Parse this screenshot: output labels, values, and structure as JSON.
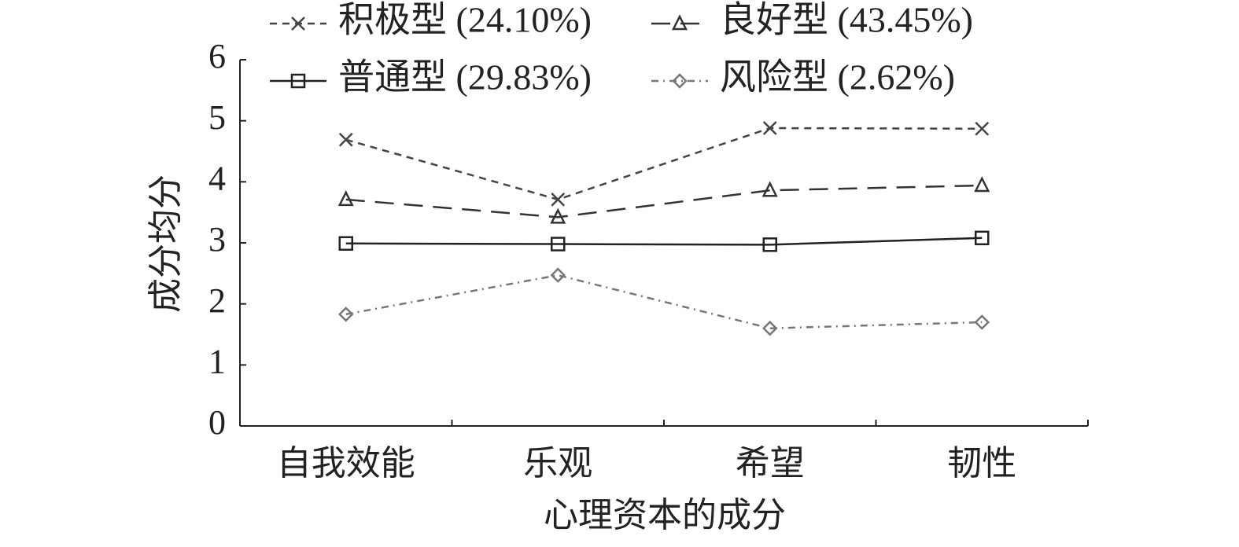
{
  "chart_data": {
    "type": "line",
    "x_label": "心理资本的成分",
    "y_label": "成分均分",
    "categories": [
      "自我效能",
      "乐观",
      "希望",
      "韧性"
    ],
    "series": [
      {
        "name": "积极型 (24.10%)",
        "color": "#444444",
        "marker": "x",
        "linestyle": "dashed",
        "values": [
          4.69,
          3.71,
          4.88,
          4.87
        ]
      },
      {
        "name": "良好型 (43.45%)",
        "color": "#333333",
        "marker": "triangle",
        "linestyle": "longdash",
        "values": [
          3.71,
          3.42,
          3.86,
          3.94
        ]
      },
      {
        "name": "普通型 (29.83%)",
        "color": "#222222",
        "marker": "square",
        "linestyle": "solid",
        "values": [
          2.99,
          2.98,
          2.97,
          3.08
        ]
      },
      {
        "name": "风险型 (2.62%)",
        "color": "#777777",
        "marker": "diamond",
        "linestyle": "dashdot",
        "values": [
          1.83,
          2.47,
          1.6,
          1.7
        ]
      }
    ],
    "ylim": [
      0,
      6
    ],
    "yticks": [
      0,
      1,
      2,
      3,
      4,
      5,
      6
    ],
    "grid": false
  }
}
